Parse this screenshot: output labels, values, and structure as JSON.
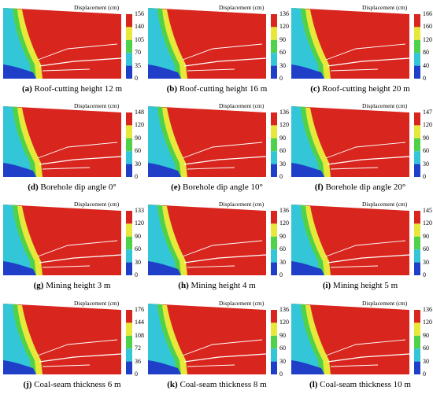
{
  "legend_title": "Displacement (cm)",
  "colors": [
    "#1f3fc8",
    "#33c6d8",
    "#4fd24a",
    "#e8e83a",
    "#d8261e"
  ],
  "panels": [
    {
      "letter": "(a)",
      "caption": "Roof-cutting height 12 m",
      "ticks": [
        "156",
        "140",
        "105",
        "70",
        "35",
        "0"
      ]
    },
    {
      "letter": "(b)",
      "caption": "Roof-cutting height 16 m",
      "ticks": [
        "136",
        "120",
        "90",
        "60",
        "30",
        "0"
      ]
    },
    {
      "letter": "(c)",
      "caption": "Roof-cutting height 20 m",
      "ticks": [
        "166",
        "160",
        "120",
        "80",
        "40",
        "0"
      ]
    },
    {
      "letter": "(d)",
      "caption": "Borehole dip angle 0°",
      "ticks": [
        "148",
        "120",
        "90",
        "60",
        "30",
        "0"
      ]
    },
    {
      "letter": "(e)",
      "caption": "Borehole dip angle 10°",
      "ticks": [
        "136",
        "120",
        "90",
        "60",
        "30",
        "0"
      ]
    },
    {
      "letter": "(f)",
      "caption": "Borehole dip angle 20°",
      "ticks": [
        "147",
        "120",
        "90",
        "60",
        "30",
        "0"
      ]
    },
    {
      "letter": "(g)",
      "caption": "Mining height 3 m",
      "ticks": [
        "133",
        "120",
        "90",
        "60",
        "30",
        "0"
      ]
    },
    {
      "letter": "(h)",
      "caption": "Mining height 4 m",
      "ticks": [
        "136",
        "120",
        "90",
        "60",
        "30",
        "0"
      ]
    },
    {
      "letter": "(i)",
      "caption": "Mining height 5 m",
      "ticks": [
        "145",
        "120",
        "90",
        "60",
        "30",
        "0"
      ]
    },
    {
      "letter": "(j)",
      "caption": "Coal-seam thickness 6 m",
      "ticks": [
        "176",
        "144",
        "108",
        "72",
        "36",
        "0"
      ]
    },
    {
      "letter": "(k)",
      "caption": "Coal-seam thickness 8 m",
      "ticks": [
        "136",
        "120",
        "90",
        "60",
        "30",
        "0"
      ]
    },
    {
      "letter": "(l)",
      "caption": "Coal-seam thickness 10 m",
      "ticks": [
        "136",
        "120",
        "90",
        "60",
        "30",
        "0"
      ]
    }
  ]
}
